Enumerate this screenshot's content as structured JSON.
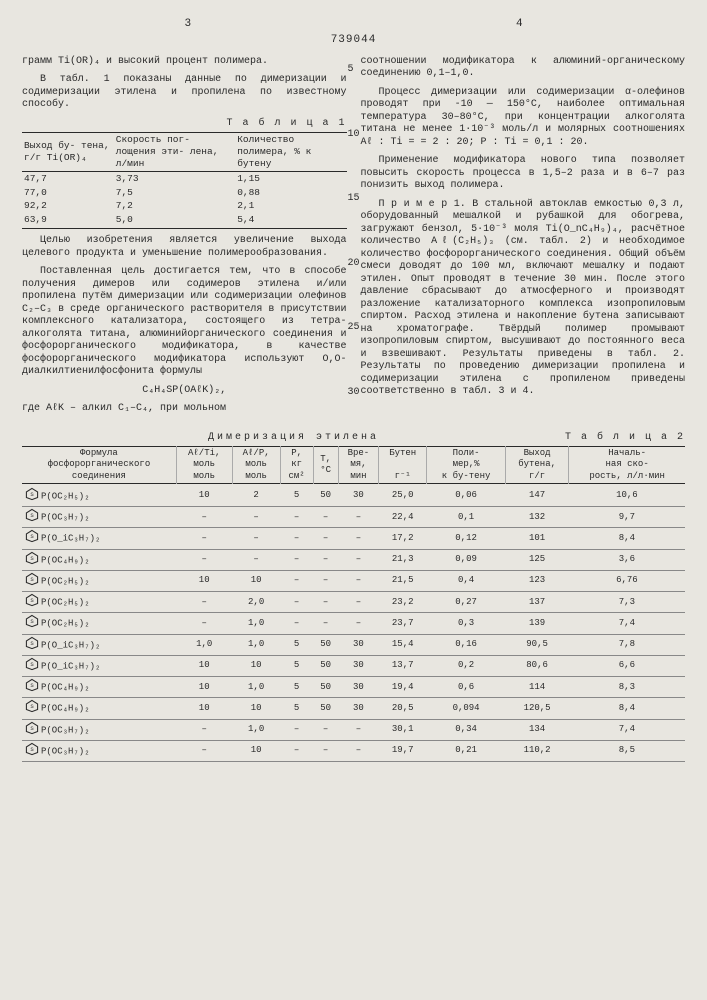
{
  "doc_number": "739044",
  "page_left": "3",
  "page_right": "4",
  "line_markers": [
    "5",
    "10",
    "15",
    "20",
    "25",
    "30"
  ],
  "left": {
    "p1": "грамм Ti(OR)₄ и высокий процент полимера.",
    "p2": "В табл. 1 показаны данные по димеризации и содимеризации этилена и пропилена по известному способу.",
    "t1_title": "Т а б л и ц а 1",
    "t1_head": [
      "Выход бу-\nтена, г/г\nTi(OR)₄",
      "Скорость пог-\nлощения эти-\nлена, л/мин",
      "Количество\nполимера,\n% к бутену"
    ],
    "t1_rows": [
      [
        "47,7",
        "3,73",
        "1,15"
      ],
      [
        "77,0",
        "7,5",
        "0,88"
      ],
      [
        "92,2",
        "7,2",
        "2,1"
      ],
      [
        "63,9",
        "5,0",
        "5,4"
      ]
    ],
    "p3": "Целью изобретения является увеличение выхода целевого продукта и уменьшение полимерообразования.",
    "p4": "Поставленная цель достигается тем, что в способе получения димеров или содимеров этилена и/или пропилена путём димеризации или содимеризации олефинов C₂–C₃ в среде органического растворителя в присутствии комплексного катализатора, состоящего из тетра-алкоголята титана, алюминийорганического соединения и фосфорорганического модификатора, в качестве фосфорорганического модификатора используют О,О-диалкилтиенилфосфонита формулы",
    "formula": "C₄H₄SP(OAℓK)₂,",
    "p5": "где AℓK – алкил C₁–C₄, при мольном"
  },
  "right": {
    "p1": "соотношении модификатора к алюминий-органическому соединению 0,1–1,0.",
    "p2": "Процесс димеризации или содимеризации α-олефинов проводят при -10 — 150°С, наиболее оптимальная температура 30–80°С, при концентрации алкоголята титана не менее 1·10⁻³ моль/л и молярных соотношениях Aℓ : Ti = = 2 : 20; P : Ti = 0,1 : 20.",
    "p3": "Применение модификатора нового типа позволяет повысить скорость процесса в 1,5–2 раза и в 6–7 раз понизить выход полимера.",
    "p4": "П р и м е р 1. В стальной автоклав емкостью 0,3 л, оборудованный мешалкой и рубашкой для обогрева, загружают бензол, 5·10⁻³ моля Ti(O_nC₄H₉)₄, расчётное количество Aℓ(C₂H₅)₃ (см. табл. 2) и необходимое количество фосфорорганического соединения. Общий объём смеси доводят до 100 мл, включают мешалку и подают этилен. Опыт проводят в течение 30 мин. После этого давление сбрасывают до атмосферного и производят разложение катализаторного комплекса изопропиловым спиртом. Расход этилена и накопление бутена записывают на хроматографе. Твёрдый полимер промывают изопропиловым спиртом, высушивают до постоянного веса и взвешивают. Результаты приведены в табл. 2. Результаты по проведению димеризации пропилена и содимеризации этилена с пропиленом приведены соответственно в табл. 3 и 4."
  },
  "t2": {
    "caption_center": "Димеризация этилена",
    "caption_right": "Т а б л и ц а 2",
    "head": [
      {
        "l1": "Формула",
        "l2": "фосфорорганического",
        "l3": "соединения"
      },
      {
        "l1": "Aℓ/Ti,",
        "l2": "моль",
        "l3": "моль"
      },
      {
        "l1": "Aℓ/P,",
        "l2": "моль",
        "l3": "моль"
      },
      {
        "l1": "P,",
        "l2": "кг",
        "l3": "см²"
      },
      {
        "l1": "T,",
        "l2": "°С",
        "l3": ""
      },
      {
        "l1": "Вре-",
        "l2": "мя,",
        "l3": "мин"
      },
      {
        "l1": "Бутен",
        "l2": "",
        "l3": "г⁻¹"
      },
      {
        "l1": "Поли-",
        "l2": "мер,%",
        "l3": "к бу-тену"
      },
      {
        "l1": "Выход",
        "l2": "бутена,",
        "l3": "г/г"
      },
      {
        "l1": "Началь-",
        "l2": "ная ско-",
        "l3": "рость, л/л·мин"
      }
    ],
    "rows": [
      [
        "P(OC₂H₅)₂",
        "10",
        "2",
        "5",
        "50",
        "30",
        "25,0",
        "0,06",
        "147",
        "10,6"
      ],
      [
        "P(OC₃H₇)₂",
        "–",
        "–",
        "–",
        "–",
        "–",
        "22,4",
        "0,1",
        "132",
        "9,7"
      ],
      [
        "P(O_iC₃H₇)₂",
        "–",
        "–",
        "–",
        "–",
        "–",
        "17,2",
        "0,12",
        "101",
        "8,4"
      ],
      [
        "P(OC₄H₉)₂",
        "–",
        "–",
        "–",
        "–",
        "–",
        "21,3",
        "0,09",
        "125",
        "3,6"
      ],
      [
        "P(OC₂H₅)₂",
        "10",
        "10",
        "–",
        "–",
        "–",
        "21,5",
        "0,4",
        "123",
        "6,76"
      ],
      [
        "P(OC₂H₅)₂",
        "–",
        "2,0",
        "–",
        "–",
        "–",
        "23,2",
        "0,27",
        "137",
        "7,3"
      ],
      [
        "P(OC₂H₅)₂",
        "–",
        "1,0",
        "–",
        "–",
        "–",
        "23,7",
        "0,3",
        "139",
        "7,4"
      ],
      [
        "P(O_iC₃H₇)₂",
        "1,0",
        "1,0",
        "5",
        "50",
        "30",
        "15,4",
        "0,16",
        "90,5",
        "7,8"
      ],
      [
        "P(O_iC₃H₇)₂",
        "10",
        "10",
        "5",
        "50",
        "30",
        "13,7",
        "0,2",
        "80,6",
        "6,6"
      ],
      [
        "P(OC₄H₉)₂",
        "10",
        "1,0",
        "5",
        "50",
        "30",
        "19,4",
        "0,6",
        "114",
        "8,3"
      ],
      [
        "P(OC₄H₉)₂",
        "10",
        "10",
        "5",
        "50",
        "30",
        "20,5",
        "0,094",
        "120,5",
        "8,4"
      ],
      [
        "P(OC₃H₇)₂",
        "–",
        "1,0",
        "–",
        "–",
        "–",
        "30,1",
        "0,34",
        "134",
        "7,4"
      ],
      [
        "P(OC₃H₇)₂",
        "–",
        "10",
        "–",
        "–",
        "–",
        "19,7",
        "0,21",
        "110,2",
        "8,5"
      ]
    ]
  }
}
